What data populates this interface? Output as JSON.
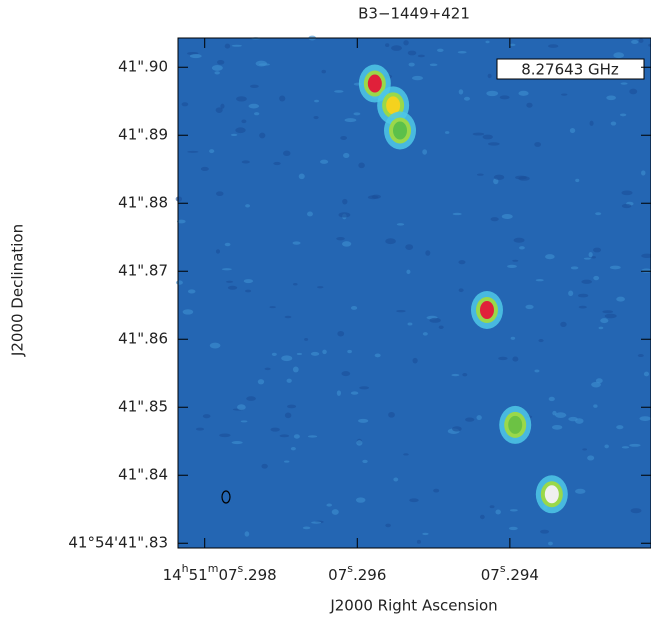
{
  "chart_data": {
    "type": "image",
    "title": "B3−1449+421",
    "annotation": "8.27643 GHz",
    "xlabel": "J2000 Right Ascension",
    "ylabel": "J2000 Declination",
    "background": "#2466b3",
    "xlim": [
      7.29835,
      7.29215
    ],
    "ylim": [
      41.8293,
      41.9043
    ],
    "xticks": [
      {
        "value": 7.298,
        "label": "14h51m07s.298"
      },
      {
        "value": 7.296,
        "label": "07s.296"
      },
      {
        "value": 7.294,
        "label": "07s.294"
      }
    ],
    "yticks": [
      {
        "value": 41.83,
        "label": "41°54'41\".83"
      },
      {
        "value": 41.84,
        "label": "41\".84"
      },
      {
        "value": 41.85,
        "label": "41\".85"
      },
      {
        "value": 41.86,
        "label": "41\".86"
      },
      {
        "value": 41.87,
        "label": "41\".87"
      },
      {
        "value": 41.88,
        "label": "41\".88"
      },
      {
        "value": 41.89,
        "label": "41\".89"
      },
      {
        "value": 41.9,
        "label": "41\".90"
      }
    ],
    "sources": {
      "x": [
        7.29577,
        7.29553,
        7.29544,
        7.2943,
        7.29393,
        7.29345
      ],
      "y": [
        41.8976,
        41.8944,
        41.8907,
        41.8643,
        41.8474,
        41.8372
      ],
      "colors": [
        "#e0203a",
        "#f4d21e",
        "#5cc04a",
        "#e0203a",
        "#6cc244",
        "#f0f0f0"
      ]
    }
  }
}
